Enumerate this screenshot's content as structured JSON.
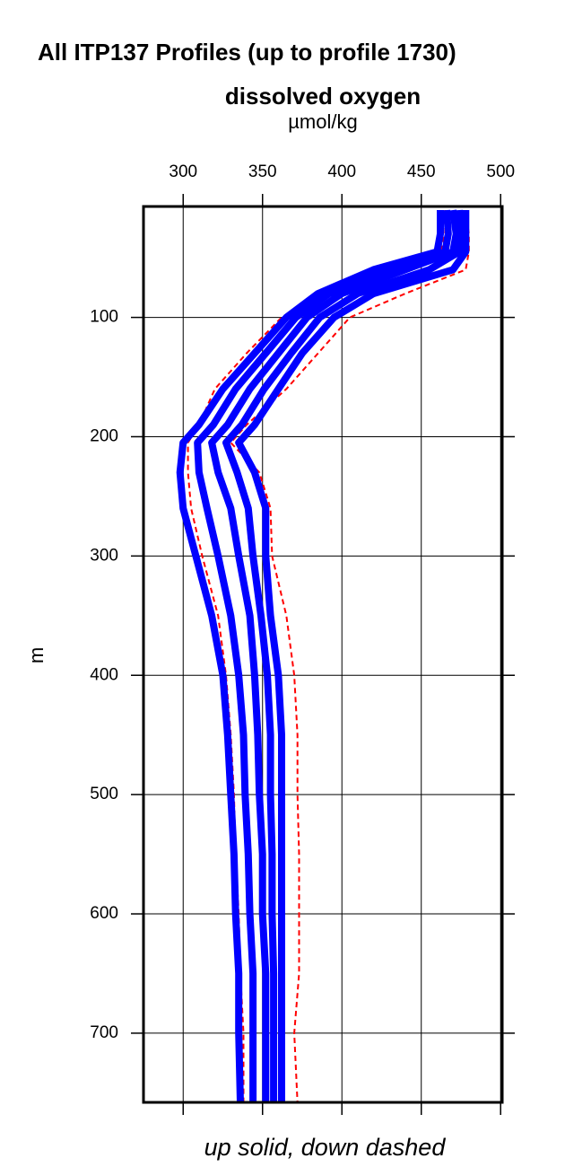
{
  "chart_data": {
    "type": "profile",
    "title": "All ITP137 Profiles (up to profile 1730)",
    "subtitle": "dissolved oxygen",
    "xlabel": "µmol/kg",
    "ylabel": "m",
    "caption": "up solid, down dashed",
    "xlim": [
      275,
      501
    ],
    "xticks": [
      300,
      350,
      400,
      450,
      500
    ],
    "ylim": [
      7,
      758
    ],
    "yticks": [
      100,
      200,
      300,
      400,
      500,
      600,
      700
    ],
    "y_inverted": true,
    "grid": true,
    "depth": [
      10,
      30,
      45,
      60,
      80,
      100,
      130,
      160,
      190,
      205,
      230,
      260,
      300,
      350,
      400,
      450,
      500,
      550,
      600,
      650,
      700,
      758
    ],
    "series": [
      {
        "color": "#ff0000",
        "style": "dashed",
        "values": [
          478,
          480,
          480,
          478,
          440,
          405,
          385,
          365,
          340,
          330,
          348,
          355,
          356,
          365,
          370,
          372,
          372,
          373,
          373,
          373,
          370,
          372
        ]
      },
      {
        "color": "#ff0000",
        "style": "dashed",
        "values": [
          465,
          465,
          462,
          425,
          390,
          362,
          340,
          320,
          310,
          303,
          303,
          305,
          312,
          322,
          327,
          330,
          332,
          333,
          335,
          336,
          338,
          338
        ]
      },
      {
        "color": "#0000ff",
        "style": "solid",
        "values": [
          462,
          462,
          460,
          420,
          385,
          365,
          345,
          325,
          310,
          300,
          298,
          300,
          308,
          318,
          325,
          328,
          330,
          332,
          333,
          335,
          335,
          336
        ]
      },
      {
        "color": "#0000ff",
        "style": "solid",
        "values": [
          466,
          467,
          465,
          430,
          392,
          371,
          352,
          333,
          319,
          309,
          310,
          315,
          322,
          330,
          335,
          338,
          339,
          341,
          342,
          344,
          344,
          344
        ]
      },
      {
        "color": "#0000ff",
        "style": "solid",
        "values": [
          470,
          472,
          470,
          440,
          400,
          378,
          360,
          342,
          328,
          318,
          322,
          330,
          335,
          342,
          345,
          347,
          348,
          350,
          350,
          352,
          352,
          352
        ]
      },
      {
        "color": "#0000ff",
        "style": "solid",
        "values": [
          474,
          475,
          474,
          455,
          410,
          386,
          368,
          351,
          337,
          327,
          334,
          341,
          344,
          349,
          353,
          355,
          355,
          356,
          356,
          357,
          357,
          357
        ]
      },
      {
        "color": "#0000ff",
        "style": "solid",
        "values": [
          478,
          478,
          478,
          470,
          420,
          395,
          375,
          360,
          345,
          335,
          345,
          352,
          352,
          355,
          360,
          362,
          362,
          362,
          362,
          362,
          362,
          362
        ]
      }
    ]
  }
}
